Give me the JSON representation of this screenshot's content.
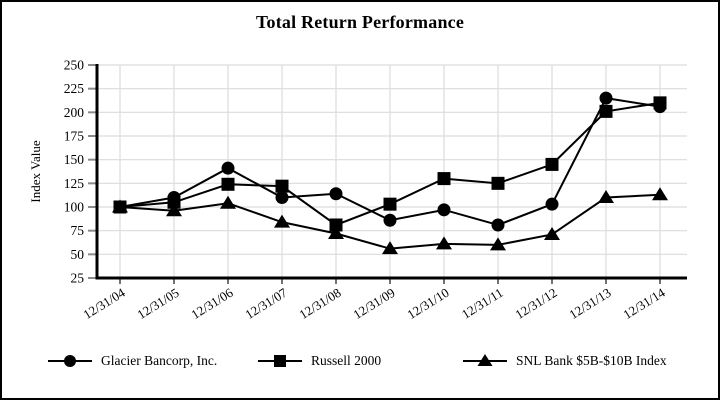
{
  "chart_data": {
    "type": "line",
    "title": "Total Return Performance",
    "ylabel": "Index Value",
    "xlabel": "",
    "x_labels": [
      "12/31/04",
      "12/31/05",
      "12/31/06",
      "12/31/07",
      "12/31/08",
      "12/31/09",
      "12/31/10",
      "12/31/11",
      "12/31/12",
      "12/31/13",
      "12/31/14"
    ],
    "ylim": [
      25,
      250
    ],
    "ytick_step": 25,
    "grid": true,
    "legend_position": "bottom",
    "series": [
      {
        "name": "Glacier Bancorp, Inc.",
        "marker": "circle",
        "values": [
          100,
          110,
          141,
          110,
          114,
          86,
          97,
          81,
          103,
          215,
          206
        ]
      },
      {
        "name": "Russell 2000",
        "marker": "square",
        "values": [
          100,
          105,
          124,
          122,
          81,
          103,
          130,
          125,
          145,
          201,
          210
        ]
      },
      {
        "name": "SNL Bank $5B-$10B Index",
        "marker": "triangle",
        "values": [
          100,
          96,
          104,
          84,
          72,
          56,
          61,
          60,
          71,
          110,
          113
        ]
      }
    ],
    "colors": {
      "series": "#000000",
      "axis": "#000000",
      "grid": "#dcdcdc",
      "tick": "#8a8a8a",
      "background": "#ffffff",
      "frame_border": "#000000"
    }
  }
}
